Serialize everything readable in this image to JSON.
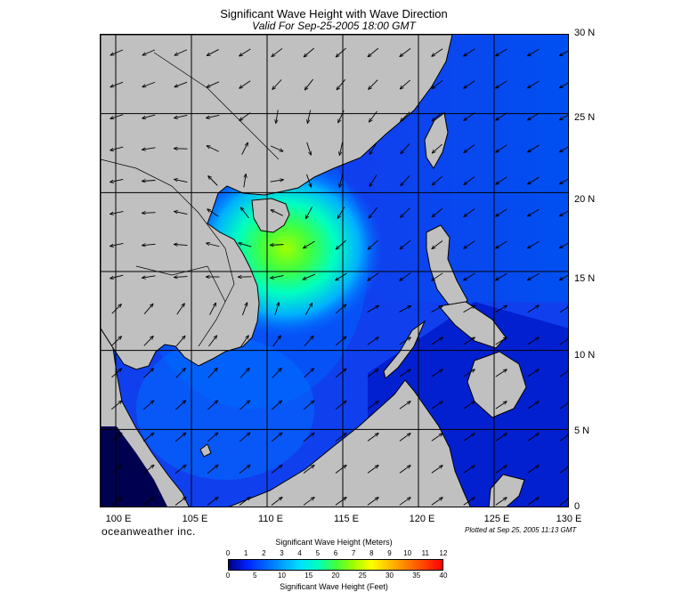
{
  "title": "Significant Wave Height with Wave Direction",
  "subtitle": "Valid For Sep-25-2005 18:00 GMT",
  "map": {
    "lon_range": [
      99,
      130
    ],
    "lat_range": [
      0,
      30
    ],
    "lat_labels": [
      "30 N",
      "25 N",
      "20 N",
      "15 N",
      "10 N",
      "5 N",
      "0"
    ],
    "lon_labels": [
      "100 E",
      "105 E",
      "110 E",
      "115 E",
      "120 E",
      "125 E",
      "130 E"
    ],
    "land_color": "#c0c0c0",
    "storm_center": {
      "lon": 111,
      "lat": 19.3,
      "label": ""
    },
    "dominant_swell_dir": "north-east"
  },
  "brand": "oceanweather inc.",
  "plotted_stamp": "Plotted at Sep 25, 2005 11:13 GMT",
  "colorbar": {
    "meters_title": "Significant Wave Height (Meters)",
    "feet_title": "Significant Wave Height (Feet)",
    "meters_ticks": [
      "0",
      "1",
      "2",
      "3",
      "4",
      "5",
      "6",
      "7",
      "8",
      "9",
      "10",
      "11",
      "12"
    ],
    "feet_ticks": [
      "0",
      "5",
      "10",
      "15",
      "20",
      "25",
      "30",
      "35",
      "40"
    ],
    "colors": [
      "#000080",
      "#0020ff",
      "#0060ff",
      "#00a0ff",
      "#00e0ff",
      "#00ffc0",
      "#40ff40",
      "#a0ff00",
      "#ffff00",
      "#ffc000",
      "#ff8000",
      "#ff4000",
      "#ff0000"
    ]
  }
}
